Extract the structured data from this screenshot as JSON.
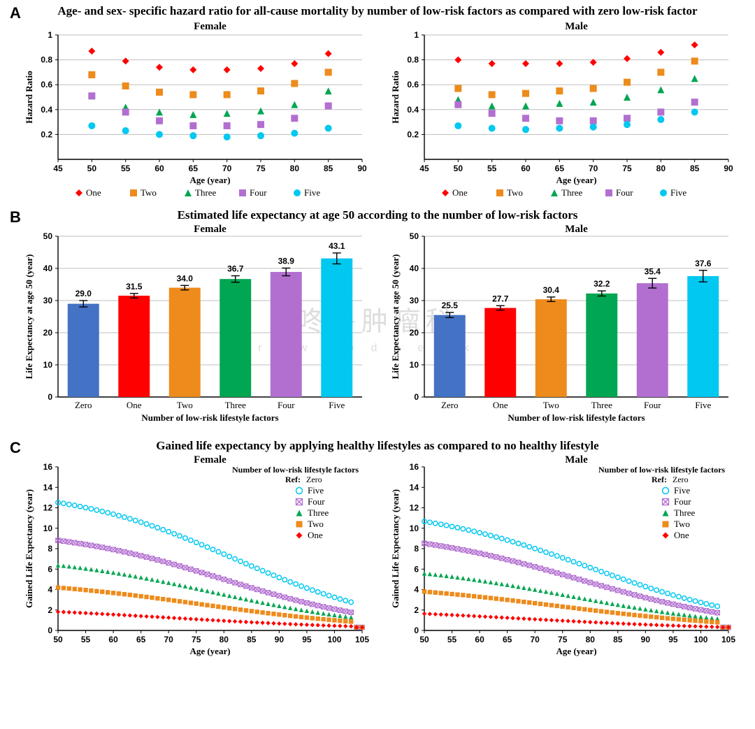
{
  "colors": {
    "one": "#ff0000",
    "two": "#ed8b1c",
    "three": "#00a651",
    "four": "#b26fd0",
    "five": "#00c8f0",
    "zero": "#4472c4",
    "axis": "#000000",
    "grid": "#bfbfbf",
    "errbar": "#000000",
    "bg": "#ffffff"
  },
  "legend_labels": {
    "one": "One",
    "two": "Two",
    "three": "Three",
    "four": "Four",
    "five": "Five",
    "zero": "Zero"
  },
  "panelA": {
    "title": "Age- and sex- specific hazard ratio for all-cause mortality by number of low-risk factors as compared with zero low-risk factor",
    "xlabel": "Age (year)",
    "ylabel": "Hazard Ratio",
    "xlim": [
      45,
      90
    ],
    "xtick_step": 5,
    "ylim": [
      0,
      1
    ],
    "yticks": [
      0.2,
      0.4,
      0.6,
      0.8,
      1
    ],
    "ages": [
      50,
      55,
      60,
      65,
      70,
      75,
      80,
      85
    ],
    "charts": [
      {
        "subtitle": "Female",
        "series": {
          "one": [
            0.87,
            0.79,
            0.74,
            0.72,
            0.72,
            0.73,
            0.77,
            0.85
          ],
          "two": [
            0.68,
            0.59,
            0.54,
            0.52,
            0.52,
            0.55,
            0.61,
            0.7
          ],
          "three": [
            0.51,
            0.42,
            0.38,
            0.36,
            0.37,
            0.39,
            0.44,
            0.55
          ],
          "four": [
            0.51,
            0.38,
            0.31,
            0.27,
            0.27,
            0.28,
            0.33,
            0.43
          ],
          "five": [
            0.27,
            0.23,
            0.2,
            0.19,
            0.18,
            0.19,
            0.21,
            0.25
          ]
        }
      },
      {
        "subtitle": "Male",
        "series": {
          "one": [
            0.8,
            0.77,
            0.77,
            0.77,
            0.78,
            0.81,
            0.86,
            0.92
          ],
          "two": [
            0.57,
            0.52,
            0.53,
            0.55,
            0.57,
            0.62,
            0.7,
            0.79
          ],
          "three": [
            0.48,
            0.43,
            0.43,
            0.45,
            0.46,
            0.5,
            0.56,
            0.65
          ],
          "four": [
            0.44,
            0.37,
            0.33,
            0.31,
            0.31,
            0.33,
            0.38,
            0.46
          ],
          "five": [
            0.27,
            0.25,
            0.24,
            0.25,
            0.26,
            0.28,
            0.32,
            0.38
          ]
        }
      }
    ]
  },
  "panelB": {
    "title": "Estimated life expectancy at age 50 according to the number of low-risk factors",
    "xlabel": "Number of low-risk lifestyle factors",
    "ylabel": "Life Expectancy at age 50 (year)",
    "categories": [
      "Zero",
      "One",
      "Two",
      "Three",
      "Four",
      "Five"
    ],
    "cat_colors": [
      "zero",
      "one",
      "two",
      "three",
      "four",
      "five"
    ],
    "ylim": [
      0,
      50
    ],
    "ytick_step": 10,
    "bar_width": 0.62,
    "charts": [
      {
        "subtitle": "Female",
        "values": [
          29.0,
          31.5,
          34.0,
          36.7,
          38.9,
          43.1
        ],
        "err": [
          1.0,
          0.7,
          0.7,
          1.0,
          1.2,
          1.7
        ]
      },
      {
        "subtitle": "Male",
        "values": [
          25.5,
          27.7,
          30.4,
          32.2,
          35.4,
          37.6
        ],
        "err": [
          0.8,
          0.7,
          0.7,
          0.8,
          1.5,
          1.8
        ]
      }
    ]
  },
  "panelC": {
    "title": "Gained life expectancy by applying healthy lifestyles as compared to no healthy lifestyle",
    "xlabel": "Age (year)",
    "ylabel": "Gained Life Expectancy (year)",
    "xlim": [
      50,
      105
    ],
    "xtick_step": 5,
    "ylim": [
      0,
      16
    ],
    "ytick_step": 2,
    "legend_title": "Number of low-risk lifestyle factors",
    "legend_ref": "Ref: Zero",
    "legend_order": [
      "five",
      "four",
      "three",
      "two",
      "one"
    ],
    "series_params": {
      "female": {
        "five": {
          "y0": 14.0,
          "mid": 82,
          "width": 15
        },
        "four": {
          "y0": 10.0,
          "mid": 80,
          "width": 15
        },
        "three": {
          "y0": 7.5,
          "mid": 78,
          "width": 16
        },
        "two": {
          "y0": 5.1,
          "mid": 76,
          "width": 17
        },
        "one": {
          "y0": 2.5,
          "mid": 70,
          "width": 20
        }
      },
      "male": {
        "five": {
          "y0": 12.3,
          "mid": 80,
          "width": 16
        },
        "four": {
          "y0": 10.0,
          "mid": 78,
          "width": 16
        },
        "three": {
          "y0": 6.8,
          "mid": 76,
          "width": 17
        },
        "two": {
          "y0": 4.8,
          "mid": 74,
          "width": 18
        },
        "one": {
          "y0": 2.3,
          "mid": 68,
          "width": 20
        }
      }
    },
    "charts": [
      {
        "subtitle": "Female",
        "key": "female"
      },
      {
        "subtitle": "Male",
        "key": "male"
      }
    ]
  },
  "watermark": {
    "line1": "咚咚肿瘤科",
    "line2": "d r .   w o o d p e c k e r"
  }
}
